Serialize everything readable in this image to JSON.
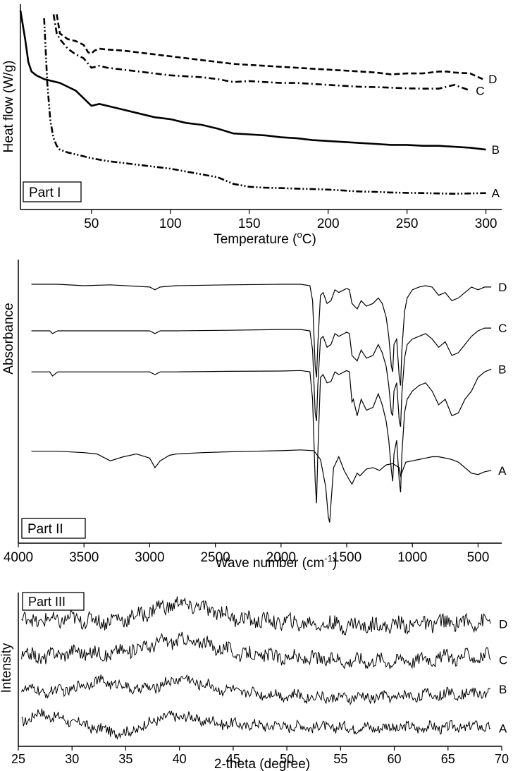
{
  "chart_data": [
    {
      "type": "line",
      "part_label": "Part I",
      "xlabel": "Temperature (",
      "xlabel_sup": "o",
      "xlabel_end": "C)",
      "ylabel": "Heat flow (W/g)",
      "xlim": [
        5,
        310
      ],
      "ylim": [
        0,
        1
      ],
      "xticks": [
        50,
        100,
        150,
        200,
        250,
        300
      ],
      "series": [
        {
          "name": "A",
          "dash": "dashdotdot",
          "x": [
            20,
            22,
            24,
            26,
            28,
            30,
            35,
            40,
            50,
            60,
            70,
            80,
            90,
            100,
            110,
            120,
            130,
            140,
            150,
            160,
            170,
            180,
            190,
            200,
            210,
            220,
            230,
            240,
            250,
            260,
            270,
            280,
            290,
            300
          ],
          "y": [
            0.96,
            0.62,
            0.42,
            0.33,
            0.29,
            0.27,
            0.255,
            0.245,
            0.225,
            0.21,
            0.2,
            0.19,
            0.18,
            0.17,
            0.155,
            0.14,
            0.125,
            0.09,
            0.075,
            0.07,
            0.068,
            0.065,
            0.063,
            0.06,
            0.055,
            0.05,
            0.048,
            0.045,
            0.043,
            0.042,
            0.04,
            0.038,
            0.04,
            0.042
          ]
        },
        {
          "name": "B",
          "dash": "solid",
          "x": [
            5,
            8,
            10,
            12,
            15,
            20,
            30,
            40,
            45,
            50,
            55,
            60,
            70,
            80,
            90,
            100,
            110,
            120,
            130,
            140,
            150,
            160,
            170,
            180,
            190,
            200,
            210,
            220,
            230,
            240,
            250,
            260,
            270,
            280,
            290,
            300
          ],
          "y": [
            1.0,
            0.85,
            0.73,
            0.68,
            0.66,
            0.64,
            0.62,
            0.58,
            0.54,
            0.5,
            0.51,
            0.5,
            0.48,
            0.46,
            0.44,
            0.43,
            0.41,
            0.4,
            0.38,
            0.355,
            0.35,
            0.345,
            0.335,
            0.33,
            0.32,
            0.315,
            0.31,
            0.305,
            0.3,
            0.295,
            0.295,
            0.29,
            0.29,
            0.285,
            0.28,
            0.27
          ]
        },
        {
          "name": "C",
          "dash": "dashdot",
          "x": [
            26,
            28,
            30,
            35,
            40,
            45,
            50,
            55,
            60,
            70,
            80,
            90,
            100,
            110,
            120,
            130,
            140,
            150,
            160,
            170,
            180,
            190,
            200,
            210,
            220,
            230,
            240,
            250,
            260,
            270,
            275,
            280,
            290
          ],
          "y": [
            0.98,
            0.88,
            0.85,
            0.8,
            0.77,
            0.75,
            0.7,
            0.71,
            0.7,
            0.69,
            0.68,
            0.67,
            0.66,
            0.655,
            0.65,
            0.64,
            0.625,
            0.63,
            0.625,
            0.62,
            0.62,
            0.615,
            0.61,
            0.605,
            0.6,
            0.598,
            0.595,
            0.592,
            0.59,
            0.59,
            0.6,
            0.61,
            0.58
          ]
        },
        {
          "name": "D",
          "dash": "dashed",
          "x": [
            28,
            30,
            35,
            40,
            45,
            48,
            50,
            52,
            55,
            60,
            70,
            80,
            90,
            100,
            110,
            120,
            130,
            140,
            150,
            160,
            170,
            180,
            190,
            200,
            210,
            220,
            230,
            240,
            250,
            260,
            270,
            275,
            280,
            290,
            298
          ],
          "y": [
            0.98,
            0.88,
            0.85,
            0.84,
            0.82,
            0.78,
            0.775,
            0.79,
            0.8,
            0.795,
            0.79,
            0.78,
            0.77,
            0.76,
            0.75,
            0.74,
            0.73,
            0.72,
            0.715,
            0.71,
            0.705,
            0.7,
            0.695,
            0.69,
            0.685,
            0.68,
            0.675,
            0.665,
            0.67,
            0.67,
            0.68,
            0.68,
            0.675,
            0.67,
            0.64
          ]
        }
      ]
    },
    {
      "type": "line",
      "part_label": "Part II",
      "xlabel": "Wave number (cm",
      "xlabel_sup": "-1",
      "xlabel_end": ")",
      "ylabel": "Absorbance",
      "xlim": [
        4000,
        320
      ],
      "ylim": [
        0,
        1
      ],
      "xticks": [
        4000,
        3500,
        3000,
        2500,
        2000,
        1500,
        1000,
        500
      ],
      "series": [
        {
          "name": "A",
          "x": [
            3900,
            3700,
            3500,
            3400,
            3300,
            3200,
            3100,
            3000,
            2960,
            2920,
            2850,
            2800,
            2600,
            2400,
            2200,
            2000,
            1850,
            1750,
            1700,
            1660,
            1640,
            1630,
            1620,
            1600,
            1560,
            1520,
            1480,
            1460,
            1420,
            1400,
            1350,
            1300,
            1250,
            1200,
            1150,
            1100,
            1090,
            1050,
            1000,
            950,
            900,
            850,
            800,
            750,
            700,
            650,
            600,
            550,
            500,
            450,
            400
          ],
          "y": [
            0.31,
            0.31,
            0.305,
            0.3,
            0.275,
            0.29,
            0.3,
            0.285,
            0.25,
            0.275,
            0.295,
            0.3,
            0.305,
            0.308,
            0.31,
            0.312,
            0.315,
            0.312,
            0.28,
            0.18,
            0.07,
            0.05,
            0.12,
            0.25,
            0.29,
            0.24,
            0.205,
            0.19,
            0.23,
            0.22,
            0.245,
            0.25,
            0.24,
            0.26,
            0.265,
            0.25,
            0.22,
            0.27,
            0.275,
            0.28,
            0.285,
            0.29,
            0.29,
            0.285,
            0.28,
            0.27,
            0.25,
            0.23,
            0.225,
            0.235,
            0.24
          ]
        },
        {
          "name": "B",
          "x": [
            3900,
            3760,
            3740,
            3700,
            3500,
            3300,
            3000,
            2960,
            2920,
            2800,
            2400,
            2000,
            1850,
            1780,
            1760,
            1740,
            1730,
            1720,
            1700,
            1680,
            1650,
            1620,
            1590,
            1560,
            1520,
            1500,
            1480,
            1460,
            1450,
            1420,
            1390,
            1350,
            1300,
            1260,
            1230,
            1200,
            1180,
            1160,
            1150,
            1140,
            1120,
            1100,
            1090,
            1080,
            1060,
            1040,
            1000,
            950,
            900,
            850,
            800,
            750,
            700,
            650,
            600,
            550,
            500,
            450,
            400
          ],
          "y": [
            0.6,
            0.6,
            0.585,
            0.6,
            0.6,
            0.6,
            0.6,
            0.59,
            0.6,
            0.6,
            0.602,
            0.603,
            0.605,
            0.6,
            0.5,
            0.2,
            0.12,
            0.3,
            0.58,
            0.59,
            0.56,
            0.565,
            0.6,
            0.59,
            0.6,
            0.605,
            0.6,
            0.49,
            0.5,
            0.44,
            0.5,
            0.46,
            0.47,
            0.52,
            0.48,
            0.42,
            0.35,
            0.24,
            0.2,
            0.3,
            0.35,
            0.2,
            0.16,
            0.3,
            0.45,
            0.5,
            0.53,
            0.55,
            0.56,
            0.53,
            0.48,
            0.5,
            0.44,
            0.45,
            0.5,
            0.53,
            0.58,
            0.6,
            0.61
          ]
        },
        {
          "name": "C",
          "x": [
            3900,
            3760,
            3740,
            3700,
            3500,
            3000,
            2960,
            2920,
            2800,
            2400,
            2000,
            1850,
            1780,
            1760,
            1740,
            1730,
            1720,
            1700,
            1680,
            1650,
            1620,
            1590,
            1560,
            1520,
            1500,
            1480,
            1460,
            1420,
            1390,
            1350,
            1300,
            1260,
            1230,
            1200,
            1180,
            1160,
            1150,
            1140,
            1120,
            1100,
            1090,
            1080,
            1060,
            1040,
            1000,
            950,
            900,
            850,
            800,
            750,
            700,
            650,
            600,
            550,
            500,
            450,
            400
          ],
          "y": [
            0.75,
            0.75,
            0.74,
            0.75,
            0.75,
            0.75,
            0.74,
            0.75,
            0.75,
            0.752,
            0.755,
            0.755,
            0.75,
            0.68,
            0.45,
            0.42,
            0.55,
            0.72,
            0.73,
            0.69,
            0.7,
            0.74,
            0.73,
            0.74,
            0.745,
            0.74,
            0.66,
            0.64,
            0.68,
            0.65,
            0.66,
            0.7,
            0.67,
            0.62,
            0.55,
            0.45,
            0.44,
            0.53,
            0.56,
            0.42,
            0.4,
            0.52,
            0.65,
            0.7,
            0.72,
            0.73,
            0.74,
            0.72,
            0.69,
            0.71,
            0.66,
            0.67,
            0.7,
            0.73,
            0.75,
            0.76,
            0.76
          ]
        },
        {
          "name": "D",
          "x": [
            3900,
            3700,
            3500,
            3300,
            3000,
            2960,
            2920,
            2800,
            2400,
            2000,
            1850,
            1780,
            1760,
            1740,
            1730,
            1720,
            1700,
            1680,
            1650,
            1620,
            1590,
            1560,
            1520,
            1500,
            1480,
            1460,
            1420,
            1390,
            1350,
            1300,
            1260,
            1230,
            1200,
            1180,
            1160,
            1150,
            1140,
            1120,
            1100,
            1090,
            1080,
            1060,
            1040,
            1000,
            950,
            900,
            850,
            800,
            750,
            700,
            650,
            600,
            550,
            500,
            450,
            400
          ],
          "y": [
            0.92,
            0.92,
            0.915,
            0.918,
            0.91,
            0.9,
            0.91,
            0.915,
            0.918,
            0.92,
            0.92,
            0.915,
            0.86,
            0.62,
            0.58,
            0.7,
            0.88,
            0.89,
            0.85,
            0.86,
            0.9,
            0.89,
            0.9,
            0.905,
            0.9,
            0.85,
            0.83,
            0.86,
            0.84,
            0.85,
            0.87,
            0.85,
            0.8,
            0.73,
            0.62,
            0.6,
            0.7,
            0.72,
            0.58,
            0.55,
            0.68,
            0.82,
            0.87,
            0.9,
            0.91,
            0.915,
            0.91,
            0.88,
            0.89,
            0.86,
            0.87,
            0.89,
            0.91,
            0.9,
            0.91,
            0.91
          ]
        }
      ]
    },
    {
      "type": "line",
      "part_label": "Part III",
      "xlabel": "2-theta (degree)",
      "ylabel": "Intensity",
      "xlim": [
        25,
        70
      ],
      "ylim": [
        0,
        1
      ],
      "xticks": [
        25,
        30,
        35,
        40,
        45,
        50,
        55,
        60,
        65,
        70
      ],
      "series": [
        {
          "name": "A",
          "baseline": 0.1,
          "amplitude": 0.075,
          "noise": 0.035,
          "x": [
            25.3,
            27,
            28,
            30,
            32,
            33,
            35,
            37,
            38,
            40,
            42,
            45,
            50,
            55,
            60,
            65,
            69
          ],
          "y": [
            0.14,
            0.2,
            0.18,
            0.14,
            0.1,
            0.08,
            0.06,
            0.12,
            0.16,
            0.18,
            0.15,
            0.12,
            0.11,
            0.1,
            0.1,
            0.1,
            0.11
          ]
        },
        {
          "name": "B",
          "baseline": 0.32,
          "amplitude": 0.09,
          "noise": 0.035,
          "x": [
            25.3,
            27,
            30,
            32,
            34,
            36,
            38,
            40,
            42,
            44,
            46,
            50,
            55,
            60,
            65,
            69
          ],
          "y": [
            0.38,
            0.34,
            0.36,
            0.42,
            0.4,
            0.36,
            0.38,
            0.44,
            0.4,
            0.36,
            0.34,
            0.32,
            0.3,
            0.31,
            0.33,
            0.34
          ]
        },
        {
          "name": "C",
          "baseline": 0.58,
          "amplitude": 0.1,
          "noise": 0.045,
          "x": [
            25.3,
            27,
            30,
            33,
            36,
            38,
            40,
            42,
            44,
            46,
            50,
            55,
            60,
            65,
            69
          ],
          "y": [
            0.6,
            0.58,
            0.62,
            0.6,
            0.64,
            0.68,
            0.7,
            0.68,
            0.64,
            0.6,
            0.58,
            0.56,
            0.56,
            0.58,
            0.59
          ]
        },
        {
          "name": "D",
          "baseline": 0.83,
          "amplitude": 0.11,
          "noise": 0.05,
          "x": [
            25.3,
            27,
            30,
            33,
            36,
            38,
            40,
            42,
            44,
            46,
            50,
            55,
            60,
            65,
            69
          ],
          "y": [
            0.84,
            0.83,
            0.84,
            0.83,
            0.86,
            0.92,
            0.95,
            0.92,
            0.88,
            0.84,
            0.82,
            0.8,
            0.8,
            0.82,
            0.82
          ]
        }
      ]
    }
  ]
}
